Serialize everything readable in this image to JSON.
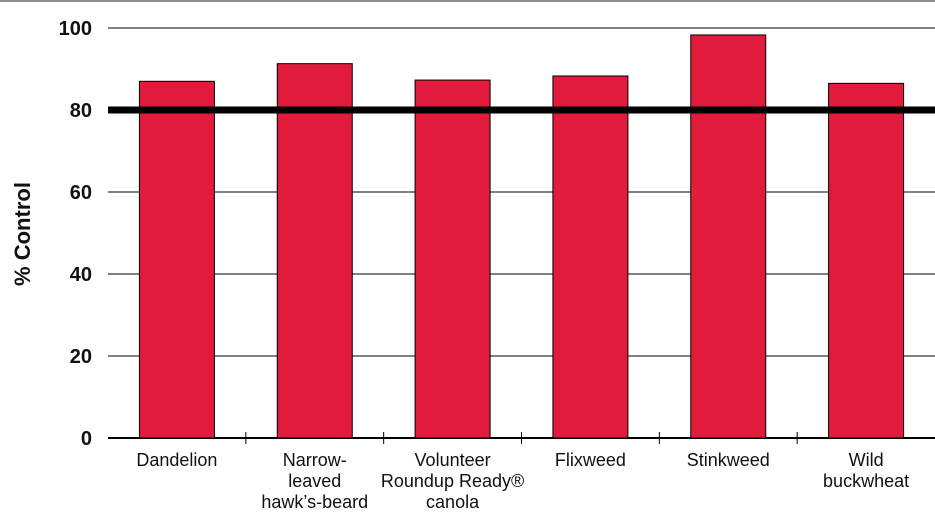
{
  "chart_data": {
    "type": "bar",
    "ylabel": "% Control",
    "xlabel": "",
    "ylim": [
      0,
      100
    ],
    "yticks": [
      0,
      20,
      40,
      60,
      80,
      100
    ],
    "grid": true,
    "reference_line": 80,
    "categories": [
      [
        "Dandelion"
      ],
      [
        "Narrow-",
        "leaved",
        "hawk’s-beard"
      ],
      [
        "Volunteer",
        "Roundup Ready®",
        "canola"
      ],
      [
        "Flixweed"
      ],
      [
        "Stinkweed"
      ],
      [
        "Wild",
        "buckwheat"
      ]
    ],
    "values": [
      87,
      91.3,
      87.3,
      88.3,
      98.3,
      86.5
    ],
    "colors": {
      "bar": "#e21a3c",
      "line": "#000000",
      "grid": "#000000"
    }
  }
}
